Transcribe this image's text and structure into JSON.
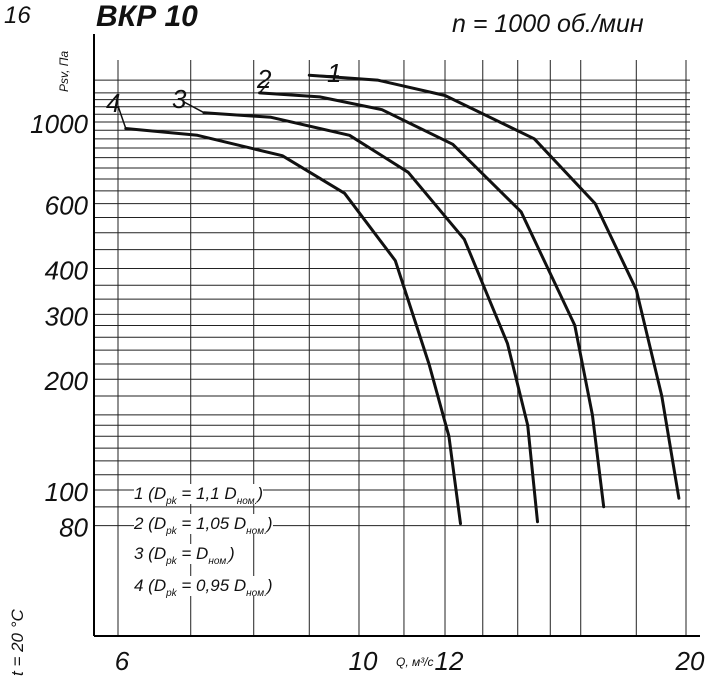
{
  "corner_number": "16",
  "title": "ВКР 10",
  "subtitle": "n = 1000 об./мин",
  "temperature_label": "t = 20 °C",
  "chart_data": {
    "type": "line",
    "title": "ВКР 10",
    "subtitle": "n = 1000 об./мин",
    "xlabel": "Q, м³/с",
    "ylabel": "Psv, Па",
    "x_scale": "log",
    "y_scale": "log",
    "xlim": [
      6,
      20
    ],
    "ylim": [
      70,
      1600
    ],
    "grid": true,
    "x_ticks": [
      6,
      10,
      12,
      20
    ],
    "x_tick_labels": [
      "6",
      "10",
      "12",
      "20"
    ],
    "y_ticks": [
      80,
      100,
      200,
      300,
      400,
      600,
      1000
    ],
    "y_tick_labels": [
      "80",
      "100",
      "200",
      "300",
      "400",
      "600",
      "1000"
    ],
    "series": [
      {
        "name": "1",
        "x": [
          9.0,
          10.4,
          12.0,
          14.5,
          16.5,
          18.0,
          19.0,
          19.7
        ],
        "y": [
          1340,
          1300,
          1180,
          900,
          600,
          350,
          180,
          95
        ]
      },
      {
        "name": "2",
        "x": [
          8.1,
          9.2,
          10.5,
          12.2,
          14.1,
          15.8,
          16.4,
          16.8
        ],
        "y": [
          1200,
          1170,
          1080,
          870,
          570,
          280,
          160,
          90
        ]
      },
      {
        "name": "3",
        "x": [
          7.2,
          8.3,
          9.8,
          11.1,
          12.5,
          13.7,
          14.3,
          14.6
        ],
        "y": [
          1060,
          1030,
          920,
          730,
          480,
          250,
          150,
          82
        ]
      },
      {
        "name": "4",
        "x": [
          6.1,
          7.1,
          8.5,
          9.7,
          10.8,
          11.6,
          12.1,
          12.4
        ],
        "y": [
          960,
          920,
          810,
          640,
          420,
          220,
          140,
          81
        ]
      }
    ],
    "legend": [
      {
        "prefix": "1 (D",
        "sub": "pk",
        "mid": " = 1,1 D",
        "sub2": "ном.",
        "suffix": ")"
      },
      {
        "prefix": "2 (D",
        "sub": "pk",
        "mid": " = 1,05 D",
        "sub2": "ном.",
        "suffix": ")"
      },
      {
        "prefix": "3 (D",
        "sub": "pk",
        "mid": " = D",
        "sub2": "ном.",
        "suffix": ")"
      },
      {
        "prefix": "4 (D",
        "sub": "pk",
        "mid": " = 0,95 D",
        "sub2": "ном.",
        "suffix": ")"
      }
    ]
  }
}
